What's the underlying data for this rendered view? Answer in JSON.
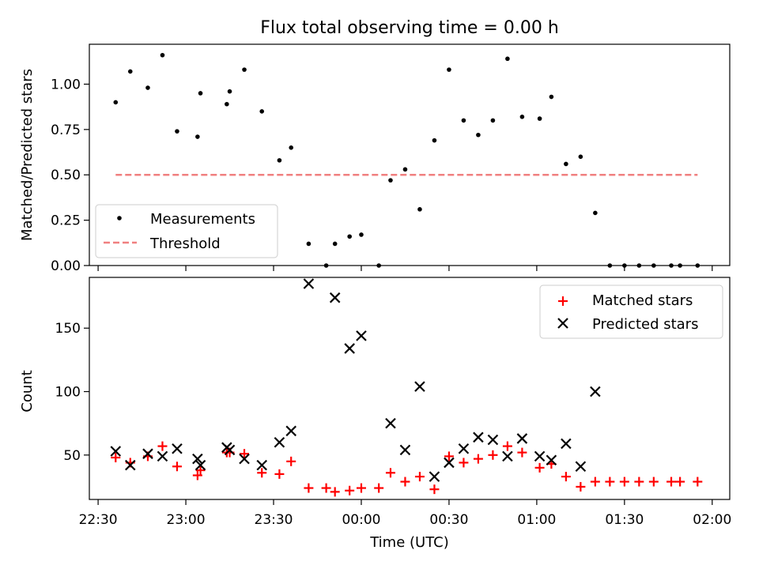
{
  "chart_data": [
    {
      "type": "scatter",
      "title": "Flux total observing time = 0.00 h",
      "xlabel": "",
      "ylabel": "Matched/Predicted stars",
      "xlim": [
        "22:27",
        "02:06"
      ],
      "ylim": [
        0,
        1.22
      ],
      "yticks": [
        "0.00",
        "0.25",
        "0.50",
        "0.75",
        "1.00"
      ],
      "grid": false,
      "legend": {
        "position": "lower-left",
        "entries": [
          "Measurements",
          "Threshold"
        ]
      },
      "series": [
        {
          "name": "Measurements",
          "marker": "dot",
          "color": "#000000",
          "points": [
            [
              "22:36",
              0.9
            ],
            [
              "22:41",
              1.07
            ],
            [
              "22:47",
              0.98
            ],
            [
              "22:52",
              1.16
            ],
            [
              "22:57",
              0.74
            ],
            [
              "23:04",
              0.71
            ],
            [
              "23:05",
              0.95
            ],
            [
              "23:14",
              0.89
            ],
            [
              "23:15",
              0.96
            ],
            [
              "23:20",
              1.08
            ],
            [
              "23:26",
              0.85
            ],
            [
              "23:32",
              0.58
            ],
            [
              "23:36",
              0.65
            ],
            [
              "23:42",
              0.12
            ],
            [
              "23:48",
              0.0
            ],
            [
              "23:51",
              0.12
            ],
            [
              "23:56",
              0.16
            ],
            [
              "00:00",
              0.17
            ],
            [
              "00:06",
              0.0
            ],
            [
              "00:10",
              0.47
            ],
            [
              "00:15",
              0.53
            ],
            [
              "00:20",
              0.31
            ],
            [
              "00:25",
              0.69
            ],
            [
              "00:30",
              1.08
            ],
            [
              "00:35",
              0.8
            ],
            [
              "00:40",
              0.72
            ],
            [
              "00:45",
              0.8
            ],
            [
              "00:50",
              1.14
            ],
            [
              "00:55",
              0.82
            ],
            [
              "01:01",
              0.81
            ],
            [
              "01:05",
              0.93
            ],
            [
              "01:10",
              0.56
            ],
            [
              "01:15",
              0.6
            ],
            [
              "01:20",
              0.29
            ],
            [
              "01:25",
              0.0
            ],
            [
              "01:30",
              0.0
            ],
            [
              "01:35",
              0.0
            ],
            [
              "01:40",
              0.0
            ],
            [
              "01:46",
              0.0
            ],
            [
              "01:49",
              0.0
            ],
            [
              "01:55",
              0.0
            ]
          ]
        },
        {
          "name": "Threshold",
          "style": "dashed",
          "color": "#f08080",
          "points": [
            [
              "22:36",
              0.5
            ],
            [
              "01:55",
              0.5
            ]
          ]
        }
      ]
    },
    {
      "type": "scatter",
      "title": "",
      "xlabel": "Time (UTC)",
      "ylabel": "Count",
      "xlim": [
        "22:27",
        "02:06"
      ],
      "ylim": [
        15,
        190
      ],
      "xticks": [
        "22:30",
        "23:00",
        "23:30",
        "00:00",
        "00:30",
        "01:00",
        "01:30",
        "02:00"
      ],
      "yticks": [
        "50",
        "100",
        "150"
      ],
      "grid": false,
      "legend": {
        "position": "top-right",
        "entries": [
          "Matched stars",
          "Predicted stars"
        ]
      },
      "series": [
        {
          "name": "Matched stars",
          "marker": "plus",
          "color": "#ff0000",
          "points": [
            [
              "22:36",
              48
            ],
            [
              "22:41",
              44
            ],
            [
              "22:47",
              49
            ],
            [
              "22:52",
              57
            ],
            [
              "22:57",
              41
            ],
            [
              "23:04",
              34
            ],
            [
              "23:05",
              38
            ],
            [
              "23:14",
              52
            ],
            [
              "23:15",
              52
            ],
            [
              "23:20",
              51
            ],
            [
              "23:26",
              36
            ],
            [
              "23:32",
              35
            ],
            [
              "23:36",
              45
            ],
            [
              "23:42",
              24
            ],
            [
              "23:48",
              24
            ],
            [
              "23:51",
              21
            ],
            [
              "23:56",
              22
            ],
            [
              "00:00",
              24
            ],
            [
              "00:06",
              24
            ],
            [
              "00:10",
              36
            ],
            [
              "00:15",
              29
            ],
            [
              "00:20",
              33
            ],
            [
              "00:25",
              23
            ],
            [
              "00:30",
              49
            ],
            [
              "00:35",
              44
            ],
            [
              "00:40",
              47
            ],
            [
              "00:45",
              50
            ],
            [
              "00:50",
              57
            ],
            [
              "00:55",
              52
            ],
            [
              "01:01",
              40
            ],
            [
              "01:05",
              43
            ],
            [
              "01:10",
              33
            ],
            [
              "01:15",
              25
            ],
            [
              "01:20",
              29
            ],
            [
              "01:25",
              29
            ],
            [
              "01:30",
              29
            ],
            [
              "01:35",
              29
            ],
            [
              "01:40",
              29
            ],
            [
              "01:46",
              29
            ],
            [
              "01:49",
              29
            ],
            [
              "01:55",
              29
            ]
          ]
        },
        {
          "name": "Predicted stars",
          "marker": "x",
          "color": "#000000",
          "points": [
            [
              "22:36",
              53
            ],
            [
              "22:41",
              42
            ],
            [
              "22:47",
              51
            ],
            [
              "22:52",
              49
            ],
            [
              "22:57",
              55
            ],
            [
              "23:04",
              47
            ],
            [
              "23:05",
              42
            ],
            [
              "23:14",
              56
            ],
            [
              "23:15",
              54
            ],
            [
              "23:20",
              47
            ],
            [
              "23:26",
              42
            ],
            [
              "23:32",
              60
            ],
            [
              "23:36",
              69
            ],
            [
              "23:42",
              185
            ],
            [
              "23:51",
              174
            ],
            [
              "23:56",
              134
            ],
            [
              "00:00",
              144
            ],
            [
              "00:10",
              75
            ],
            [
              "00:15",
              54
            ],
            [
              "00:20",
              104
            ],
            [
              "00:25",
              33
            ],
            [
              "00:30",
              44
            ],
            [
              "00:35",
              55
            ],
            [
              "00:40",
              64
            ],
            [
              "00:45",
              62
            ],
            [
              "00:50",
              49
            ],
            [
              "00:55",
              63
            ],
            [
              "01:01",
              49
            ],
            [
              "01:05",
              46
            ],
            [
              "01:10",
              59
            ],
            [
              "01:15",
              41
            ],
            [
              "01:20",
              100
            ]
          ]
        }
      ]
    }
  ]
}
